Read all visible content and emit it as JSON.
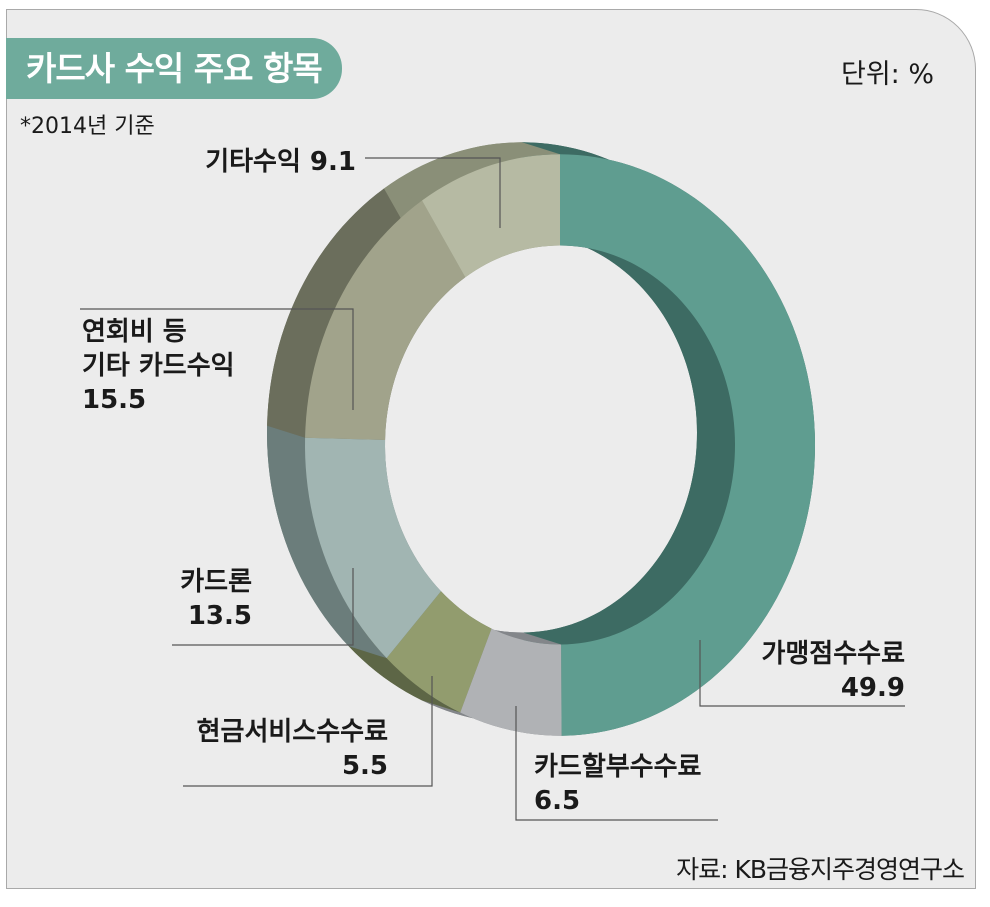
{
  "header": {
    "title": "카드사 수익 주요 항목",
    "unit": "단위: %",
    "basis": "*2014년 기준"
  },
  "footer": {
    "source": "자료: KB금융지주경영연구소"
  },
  "chart_data": {
    "type": "pie",
    "style": "donut",
    "categories": [
      "가맹점수수료",
      "카드할부수수료",
      "현금서비스수수료",
      "카드론",
      "연회비 등 기타 카드수익",
      "기타수익"
    ],
    "values": [
      49.9,
      6.5,
      5.5,
      13.5,
      15.5,
      9.1
    ],
    "labels": [
      {
        "lines": [
          "가맹점수수료",
          "49.9"
        ]
      },
      {
        "lines": [
          "카드할부수수료",
          "6.5"
        ]
      },
      {
        "lines": [
          "현금서비스수수료",
          "5.5"
        ]
      },
      {
        "lines": [
          "카드론",
          "13.5"
        ]
      },
      {
        "lines": [
          "연회비  등",
          "기타  카드수익",
          "15.5"
        ]
      },
      {
        "lines": [
          "기타수익  9.1"
        ]
      }
    ],
    "colors": [
      "#5f9d90",
      "#b0b2b5",
      "#929c6e",
      "#a1b5b2",
      "#a1a38b",
      "#b6baa3"
    ],
    "side_colors": [
      "#3d6b63",
      "#83868a",
      "#5d6646",
      "#6b7d7b",
      "#6b6e5c",
      "#8a8f78"
    ]
  }
}
